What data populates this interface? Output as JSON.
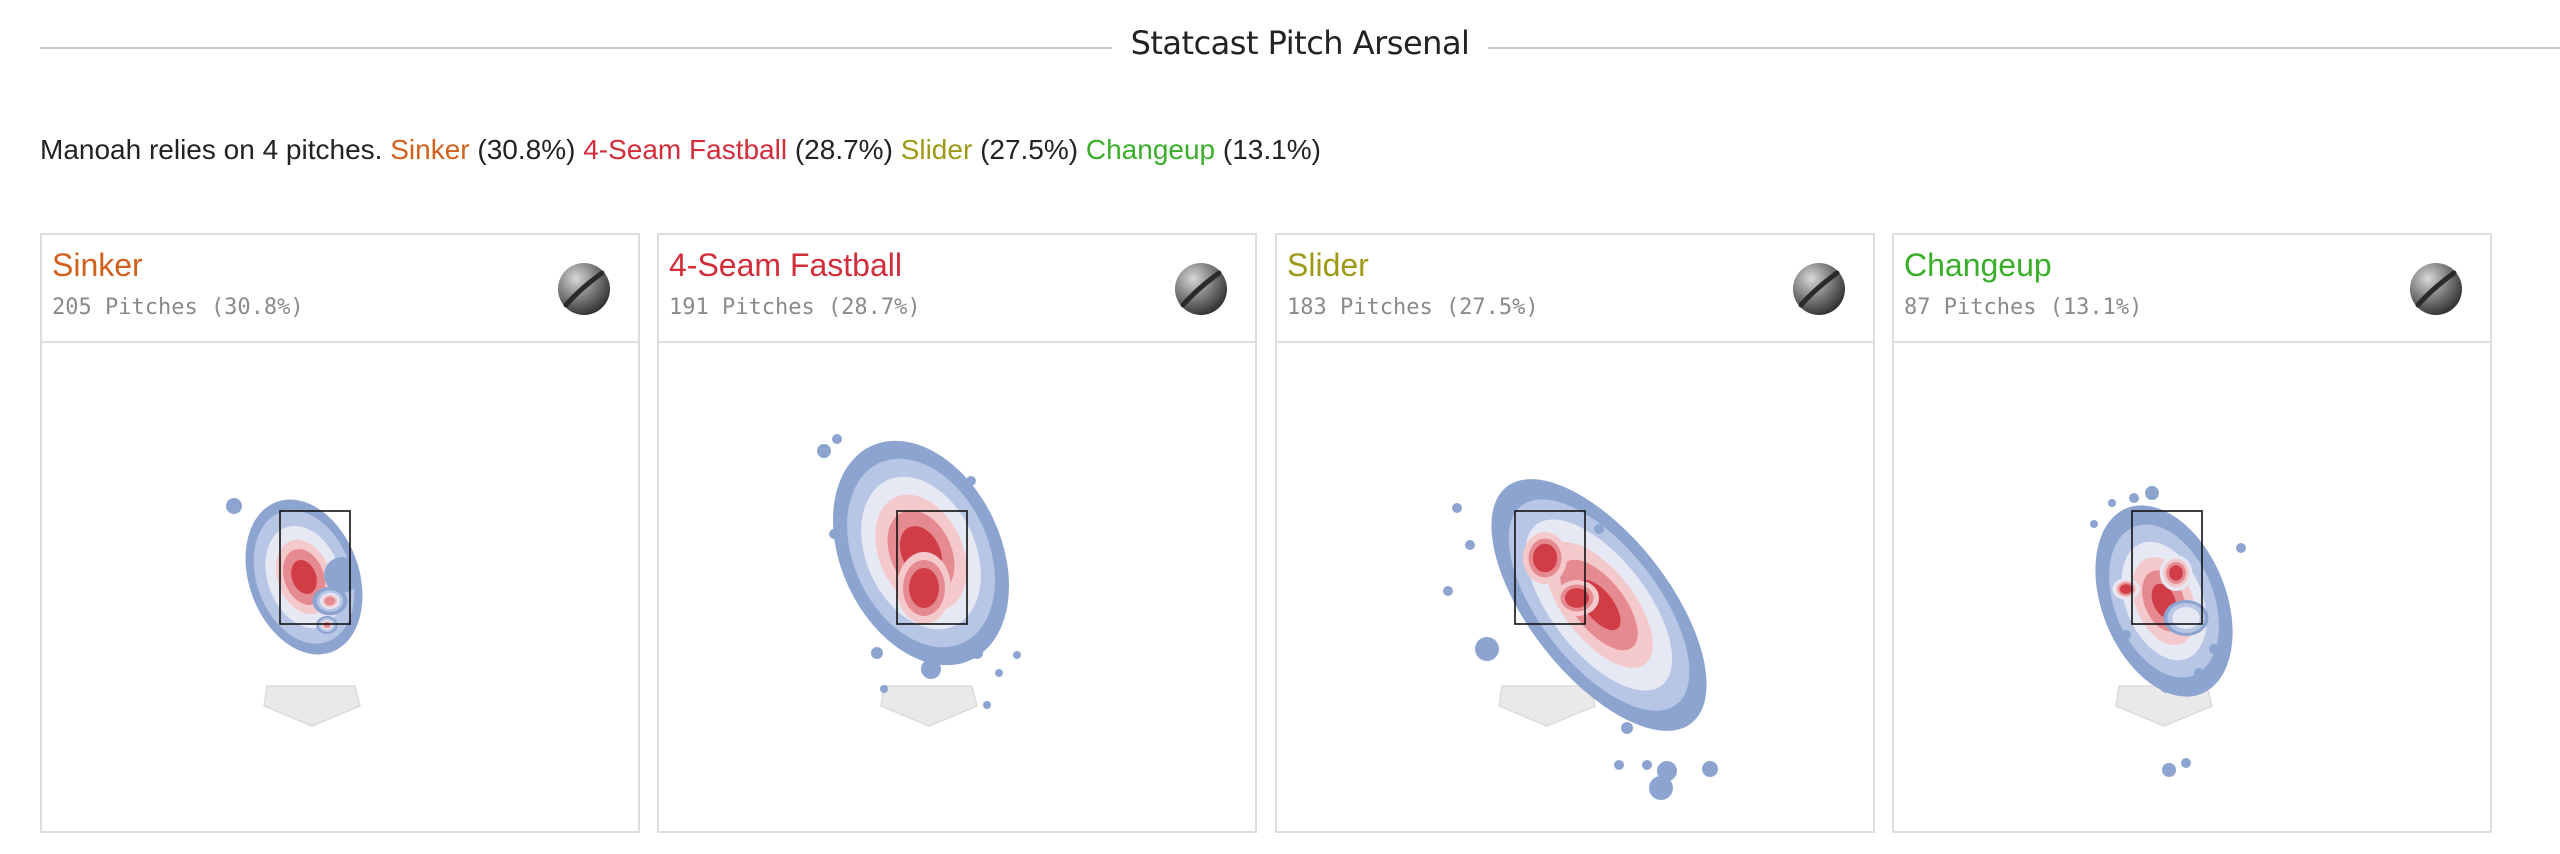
{
  "header": {
    "title": "Statcast Pitch Arsenal"
  },
  "summary": {
    "intro": "Manoah relies on 4 pitches.",
    "items": [
      {
        "name": "Sinker",
        "pct": "(30.8%)",
        "color": "#d2611f"
      },
      {
        "name": "4-Seam Fastball",
        "pct": "(28.7%)",
        "color": "#d22d3a"
      },
      {
        "name": "Slider",
        "pct": "(27.5%)",
        "color": "#9c9a17"
      },
      {
        "name": "Changeup",
        "pct": "(13.1%)",
        "color": "#3aae2b"
      }
    ]
  },
  "cards": [
    {
      "name": "Sinker",
      "count": "205 Pitches (30.8%)",
      "color": "#d2611f",
      "icon": "baseball-icon"
    },
    {
      "name": "4-Seam Fastball",
      "count": "191 Pitches (28.7%)",
      "color": "#d22d3a",
      "icon": "baseball-icon"
    },
    {
      "name": "Slider",
      "count": "183 Pitches (27.5%)",
      "color": "#9c9a17",
      "icon": "baseball-icon"
    },
    {
      "name": "Changeup",
      "count": "87 Pitches (13.1%)",
      "color": "#3aae2b",
      "icon": "baseball-icon"
    }
  ],
  "chart_data": {
    "type": "heatmap",
    "title": "Statcast Pitch Arsenal",
    "density_colors": [
      "#8ea4d0",
      "#b7c6e4",
      "#e6e9f4",
      "#f4c9cc",
      "#e58a90",
      "#d13d47"
    ],
    "panels": [
      {
        "series": "Sinker",
        "pitches": 205,
        "share_pct": 30.8,
        "density_centers": [
          {
            "x": -0.35,
            "z": 2.8
          }
        ]
      },
      {
        "series": "4-Seam Fastball",
        "pitches": 191,
        "share_pct": 28.7,
        "density_centers": [
          {
            "x": -0.2,
            "z": 3.0
          }
        ]
      },
      {
        "series": "Slider",
        "pitches": 183,
        "share_pct": 27.5,
        "density_centers": [
          {
            "x": 0.1,
            "z": 2.6
          },
          {
            "x": 0.5,
            "z": 2.0
          }
        ]
      },
      {
        "series": "Changeup",
        "pitches": 87,
        "share_pct": 13.1,
        "density_centers": [
          {
            "x": -0.6,
            "z": 2.5
          }
        ]
      }
    ]
  }
}
